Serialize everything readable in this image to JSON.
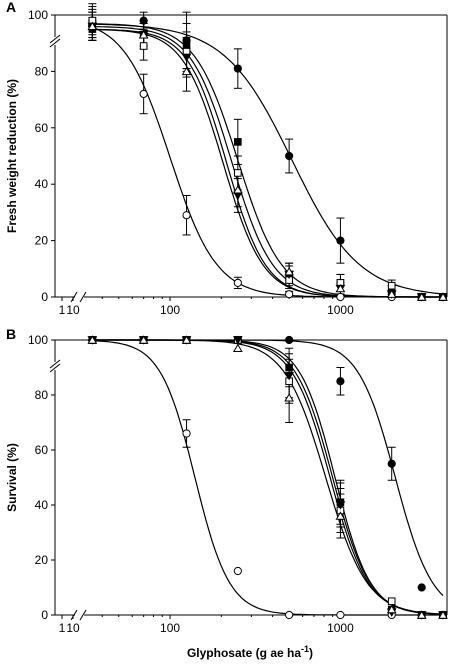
{
  "chart_data": [
    {
      "type": "scatter",
      "panel_label": "A",
      "ylabel": "Fresh weight reduction (%)",
      "xlabel": "",
      "x_scale": "log",
      "x_ticks": [
        1,
        10,
        100,
        1000
      ],
      "y_ticks": [
        0,
        20,
        40,
        60,
        80,
        100
      ],
      "ylim": [
        0,
        100
      ],
      "axis_breaks": true,
      "series": [
        {
          "marker": "filled-circle",
          "x": [
            35,
            70,
            125,
            250,
            500,
            1000,
            2000,
            3000,
            4000
          ],
          "y": [
            97,
            98,
            91,
            81,
            50,
            20,
            2,
            0,
            0
          ],
          "err": [
            5,
            3,
            10,
            7,
            6,
            8,
            2,
            1,
            1
          ],
          "curve": {
            "top": 97,
            "ec50": 520,
            "slope": 2.2
          }
        },
        {
          "marker": "open-circle",
          "x": [
            35,
            70,
            125,
            250,
            500,
            1000,
            2000,
            3000,
            4000
          ],
          "y": [
            98,
            72,
            29,
            5,
            1,
            0,
            0,
            0,
            0
          ],
          "err": [
            6,
            7,
            7,
            2,
            1,
            1,
            1,
            1,
            1
          ],
          "curve": {
            "top": 99,
            "ec50": 100,
            "slope": 3.2
          }
        },
        {
          "marker": "filled-square",
          "x": [
            35,
            70,
            125,
            250,
            500,
            1000,
            2000,
            3000,
            4000
          ],
          "y": [
            95,
            93,
            89,
            55,
            8,
            5,
            2,
            0,
            0
          ],
          "err": [
            4,
            5,
            8,
            8,
            4,
            3,
            2,
            1,
            1
          ],
          "curve": {
            "top": 97,
            "ec50": 250,
            "slope": 3.4
          }
        },
        {
          "marker": "open-square",
          "x": [
            35,
            70,
            125,
            250,
            500,
            1000,
            2000,
            3000,
            4000
          ],
          "y": [
            98,
            89,
            87,
            44,
            6,
            5,
            4,
            0,
            0
          ],
          "err": [
            5,
            5,
            7,
            6,
            3,
            3,
            2,
            1,
            1
          ],
          "curve": {
            "top": 96,
            "ec50": 230,
            "slope": 3.6
          }
        },
        {
          "marker": "filled-triangle-down",
          "x": [
            35,
            70,
            125,
            250,
            500,
            1000,
            2000,
            3000,
            4000
          ],
          "y": [
            96,
            93,
            85,
            36,
            8,
            3,
            1,
            0,
            0
          ],
          "err": [
            5,
            4,
            7,
            6,
            3,
            2,
            1,
            1,
            1
          ],
          "curve": {
            "top": 95,
            "ec50": 215,
            "slope": 3.8
          }
        },
        {
          "marker": "open-triangle-up",
          "x": [
            35,
            70,
            125,
            250,
            500,
            1000,
            2000,
            3000,
            4000
          ],
          "y": [
            96,
            93,
            80,
            38,
            9,
            3,
            1,
            0,
            0
          ],
          "err": [
            5,
            4,
            7,
            6,
            3,
            2,
            1,
            1,
            1
          ],
          "curve": {
            "top": 95,
            "ec50": 205,
            "slope": 3.7
          }
        }
      ]
    },
    {
      "type": "scatter",
      "panel_label": "B",
      "ylabel": "Survival (%)",
      "xlabel": "Glyphosate (g ae ha",
      "xlabel_superscript": "-1",
      "xlabel_suffix": ")",
      "x_scale": "log",
      "x_ticks": [
        1,
        10,
        100,
        1000
      ],
      "y_ticks": [
        0,
        20,
        40,
        60,
        80,
        100
      ],
      "ylim": [
        0,
        100
      ],
      "axis_breaks": true,
      "series": [
        {
          "marker": "filled-circle",
          "x": [
            35,
            70,
            125,
            250,
            500,
            1000,
            2000,
            3000,
            4000
          ],
          "y": [
            100,
            100,
            100,
            100,
            100,
            85,
            55,
            10,
            0
          ],
          "err": [
            0,
            0,
            0,
            0,
            0,
            5,
            6,
            0,
            0
          ],
          "curve": {
            "top": 100,
            "ec50": 2100,
            "slope": 4.0
          }
        },
        {
          "marker": "open-circle",
          "x": [
            35,
            70,
            125,
            250,
            500,
            1000,
            2000,
            3000,
            4000
          ],
          "y": [
            100,
            100,
            66,
            16,
            0,
            0,
            0,
            0,
            0
          ],
          "err": [
            0,
            0,
            5,
            0,
            0,
            0,
            0,
            0,
            0
          ],
          "curve": {
            "top": 100,
            "ec50": 140,
            "slope": 4.3
          }
        },
        {
          "marker": "filled-square",
          "x": [
            35,
            70,
            125,
            250,
            500,
            1000,
            2000,
            3000,
            4000
          ],
          "y": [
            100,
            100,
            100,
            100,
            90,
            41,
            2,
            0,
            0
          ],
          "err": [
            0,
            0,
            0,
            0,
            7,
            8,
            0,
            0,
            0
          ],
          "curve": {
            "top": 100,
            "ec50": 930,
            "slope": 4.2
          }
        },
        {
          "marker": "open-square",
          "x": [
            35,
            70,
            125,
            250,
            500,
            1000,
            2000,
            3000,
            4000
          ],
          "y": [
            100,
            100,
            100,
            100,
            85,
            38,
            5,
            0,
            0
          ],
          "err": [
            0,
            0,
            0,
            0,
            8,
            8,
            0,
            0,
            0
          ],
          "curve": {
            "top": 100,
            "ec50": 900,
            "slope": 4.0
          }
        },
        {
          "marker": "filled-triangle-down",
          "x": [
            35,
            70,
            125,
            250,
            500,
            1000,
            2000,
            3000,
            4000
          ],
          "y": [
            100,
            100,
            100,
            100,
            87,
            40,
            1,
            0,
            0
          ],
          "err": [
            0,
            0,
            0,
            0,
            8,
            8,
            0,
            0,
            0
          ],
          "curve": {
            "top": 100,
            "ec50": 870,
            "slope": 3.9
          }
        },
        {
          "marker": "open-triangle-up",
          "x": [
            35,
            70,
            125,
            250,
            500,
            1000,
            2000,
            3000,
            4000
          ],
          "y": [
            100,
            100,
            100,
            97,
            79,
            36,
            2,
            0,
            0
          ],
          "err": [
            0,
            0,
            0,
            0,
            9,
            8,
            0,
            0,
            0
          ],
          "curve": {
            "top": 100,
            "ec50": 820,
            "slope": 3.6
          }
        }
      ]
    }
  ]
}
